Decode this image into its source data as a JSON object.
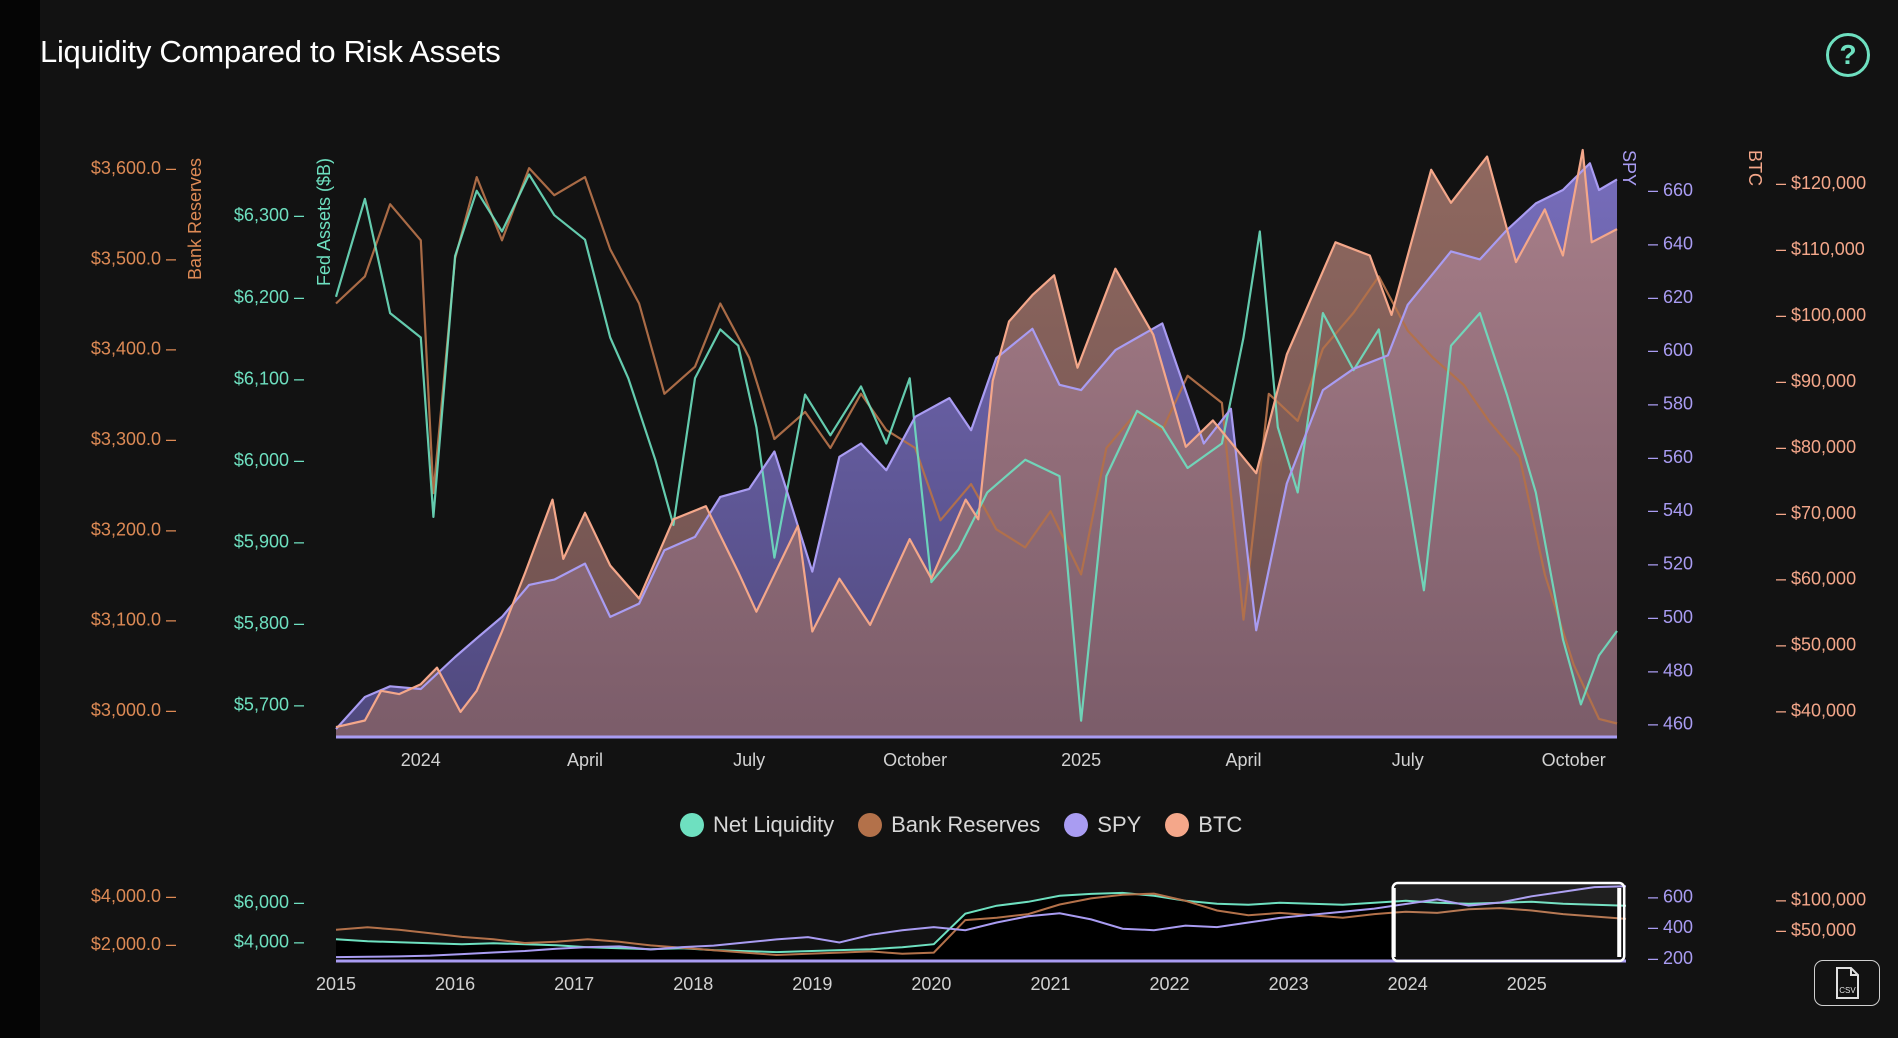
{
  "header": {
    "title": "Liquidity Compared to Risk Assets",
    "help_glyph": "?"
  },
  "toolbar": {
    "csv_label": "CSV",
    "csv_icon": "file-csv-icon",
    "help_icon": "help-circle-icon"
  },
  "colors": {
    "net_liquidity": "#6ee0c0",
    "bank_reserves": "#b3714a",
    "spy": "#a99cf2",
    "btc": "#f4a78a",
    "bank_axis": "#dd8a55",
    "fed_axis": "#6ee0c0",
    "spy_axis": "#a99cf2",
    "btc_axis": "#f4a78a"
  },
  "chart_data": {
    "type": "line",
    "title": "Liquidity Compared to Risk Assets",
    "x_ticks": [
      "2024",
      "April",
      "July",
      "October",
      "2025",
      "April",
      "July",
      "October"
    ],
    "x_range": [
      "2023-11-15",
      "2025-10-25"
    ],
    "legend": {
      "position": "bottom-center",
      "entries": [
        "Net Liquidity",
        "Bank Reserves",
        "SPY",
        "BTC"
      ]
    },
    "axes": {
      "bank_reserves": {
        "label": "Bank Reserves",
        "side": "left",
        "range": [
          2970,
          3620
        ],
        "ticks": [
          "$3,600.0",
          "$3,500.0",
          "$3,400.0",
          "$3,300.0",
          "$3,200.0",
          "$3,100.0",
          "$3,000.0"
        ]
      },
      "fed_assets": {
        "label": "Fed Assets ($B)",
        "side": "left",
        "range": [
          5660,
          6380
        ],
        "ticks": [
          "$6,300",
          "$6,200",
          "$6,100",
          "$6,000",
          "$5,900",
          "$5,800",
          "$5,700"
        ]
      },
      "spy": {
        "label": "SPY",
        "side": "right",
        "range": [
          455,
          675
        ],
        "ticks": [
          "660",
          "640",
          "620",
          "600",
          "580",
          "560",
          "540",
          "520",
          "500",
          "480",
          "460"
        ]
      },
      "btc": {
        "label": "BTC",
        "side": "right",
        "range": [
          36000,
          125000
        ],
        "ticks": [
          "$120,000",
          "$110,000",
          "$100,000",
          "$90,000",
          "$80,000",
          "$70,000",
          "$60,000",
          "$50,000",
          "$40,000"
        ]
      }
    },
    "series": [
      {
        "name": "Net Liquidity",
        "axis": "fed_assets",
        "color": "#6ee0c0",
        "points": [
          [
            "2023-11-15",
            6200
          ],
          [
            "2023-12-01",
            6320
          ],
          [
            "2023-12-15",
            6180
          ],
          [
            "2024-01-01",
            6150
          ],
          [
            "2024-01-08",
            5930
          ],
          [
            "2024-01-20",
            6250
          ],
          [
            "2024-02-01",
            6330
          ],
          [
            "2024-02-15",
            6280
          ],
          [
            "2024-03-01",
            6350
          ],
          [
            "2024-03-15",
            6300
          ],
          [
            "2024-04-01",
            6270
          ],
          [
            "2024-04-15",
            6150
          ],
          [
            "2024-04-25",
            6100
          ],
          [
            "2024-05-10",
            6000
          ],
          [
            "2024-05-20",
            5920
          ],
          [
            "2024-06-01",
            6100
          ],
          [
            "2024-06-15",
            6160
          ],
          [
            "2024-06-25",
            6140
          ],
          [
            "2024-07-05",
            6040
          ],
          [
            "2024-07-15",
            5880
          ],
          [
            "2024-08-01",
            6080
          ],
          [
            "2024-08-15",
            6030
          ],
          [
            "2024-09-01",
            6090
          ],
          [
            "2024-09-15",
            6020
          ],
          [
            "2024-09-28",
            6100
          ],
          [
            "2024-10-10",
            5850
          ],
          [
            "2024-10-25",
            5890
          ],
          [
            "2024-11-10",
            5960
          ],
          [
            "2024-12-01",
            6000
          ],
          [
            "2024-12-20",
            5980
          ],
          [
            "2025-01-01",
            5680
          ],
          [
            "2025-01-15",
            5980
          ],
          [
            "2025-02-01",
            6060
          ],
          [
            "2025-02-15",
            6040
          ],
          [
            "2025-03-01",
            5990
          ],
          [
            "2025-03-20",
            6020
          ],
          [
            "2025-04-01",
            6150
          ],
          [
            "2025-04-10",
            6280
          ],
          [
            "2025-04-20",
            6040
          ],
          [
            "2025-05-01",
            5960
          ],
          [
            "2025-05-15",
            6180
          ],
          [
            "2025-06-01",
            6110
          ],
          [
            "2025-06-15",
            6160
          ],
          [
            "2025-07-01",
            5960
          ],
          [
            "2025-07-10",
            5840
          ],
          [
            "2025-07-25",
            6140
          ],
          [
            "2025-08-10",
            6180
          ],
          [
            "2025-08-25",
            6080
          ],
          [
            "2025-09-10",
            5960
          ],
          [
            "2025-09-25",
            5780
          ],
          [
            "2025-10-05",
            5700
          ],
          [
            "2025-10-15",
            5760
          ],
          [
            "2025-10-25",
            5790
          ]
        ]
      },
      {
        "name": "Bank Reserves",
        "axis": "bank_reserves",
        "color": "#b3714a",
        "points": [
          [
            "2023-11-15",
            3450
          ],
          [
            "2023-12-01",
            3480
          ],
          [
            "2023-12-15",
            3560
          ],
          [
            "2024-01-01",
            3520
          ],
          [
            "2024-01-08",
            3240
          ],
          [
            "2024-01-20",
            3500
          ],
          [
            "2024-02-01",
            3590
          ],
          [
            "2024-02-15",
            3520
          ],
          [
            "2024-03-01",
            3600
          ],
          [
            "2024-03-15",
            3570
          ],
          [
            "2024-04-01",
            3590
          ],
          [
            "2024-04-15",
            3510
          ],
          [
            "2024-05-01",
            3450
          ],
          [
            "2024-05-15",
            3350
          ],
          [
            "2024-06-01",
            3380
          ],
          [
            "2024-06-15",
            3450
          ],
          [
            "2024-07-01",
            3390
          ],
          [
            "2024-07-15",
            3300
          ],
          [
            "2024-08-01",
            3330
          ],
          [
            "2024-08-15",
            3290
          ],
          [
            "2024-09-01",
            3350
          ],
          [
            "2024-09-15",
            3310
          ],
          [
            "2024-10-01",
            3290
          ],
          [
            "2024-10-15",
            3210
          ],
          [
            "2024-11-01",
            3250
          ],
          [
            "2024-11-15",
            3200
          ],
          [
            "2024-12-01",
            3180
          ],
          [
            "2024-12-15",
            3220
          ],
          [
            "2025-01-01",
            3150
          ],
          [
            "2025-01-15",
            3290
          ],
          [
            "2025-02-01",
            3330
          ],
          [
            "2025-02-15",
            3310
          ],
          [
            "2025-03-01",
            3370
          ],
          [
            "2025-03-20",
            3340
          ],
          [
            "2025-04-01",
            3100
          ],
          [
            "2025-04-15",
            3350
          ],
          [
            "2025-05-01",
            3320
          ],
          [
            "2025-05-15",
            3400
          ],
          [
            "2025-06-01",
            3440
          ],
          [
            "2025-06-15",
            3480
          ],
          [
            "2025-07-01",
            3420
          ],
          [
            "2025-07-15",
            3390
          ],
          [
            "2025-08-01",
            3360
          ],
          [
            "2025-08-15",
            3320
          ],
          [
            "2025-09-01",
            3280
          ],
          [
            "2025-09-15",
            3150
          ],
          [
            "2025-10-01",
            3050
          ],
          [
            "2025-10-15",
            2990
          ],
          [
            "2025-10-25",
            2985
          ]
        ]
      },
      {
        "name": "SPY",
        "axis": "spy",
        "color": "#a99cf2",
        "points": [
          [
            "2023-11-15",
            458
          ],
          [
            "2023-12-01",
            470
          ],
          [
            "2023-12-15",
            474
          ],
          [
            "2024-01-01",
            473
          ],
          [
            "2024-01-20",
            485
          ],
          [
            "2024-02-01",
            492
          ],
          [
            "2024-02-15",
            500
          ],
          [
            "2024-03-01",
            512
          ],
          [
            "2024-03-15",
            514
          ],
          [
            "2024-04-01",
            520
          ],
          [
            "2024-04-15",
            500
          ],
          [
            "2024-05-01",
            505
          ],
          [
            "2024-05-15",
            525
          ],
          [
            "2024-06-01",
            530
          ],
          [
            "2024-06-15",
            545
          ],
          [
            "2024-07-01",
            548
          ],
          [
            "2024-07-15",
            562
          ],
          [
            "2024-08-05",
            517
          ],
          [
            "2024-08-20",
            560
          ],
          [
            "2024-09-01",
            565
          ],
          [
            "2024-09-15",
            555
          ],
          [
            "2024-10-01",
            575
          ],
          [
            "2024-10-20",
            582
          ],
          [
            "2024-11-01",
            570
          ],
          [
            "2024-11-15",
            597
          ],
          [
            "2024-12-05",
            608
          ],
          [
            "2024-12-20",
            587
          ],
          [
            "2025-01-01",
            585
          ],
          [
            "2025-01-20",
            600
          ],
          [
            "2025-02-15",
            610
          ],
          [
            "2025-03-10",
            565
          ],
          [
            "2025-03-25",
            578
          ],
          [
            "2025-04-08",
            495
          ],
          [
            "2025-04-25",
            550
          ],
          [
            "2025-05-15",
            585
          ],
          [
            "2025-06-01",
            593
          ],
          [
            "2025-06-20",
            598
          ],
          [
            "2025-07-01",
            617
          ],
          [
            "2025-07-25",
            637
          ],
          [
            "2025-08-10",
            634
          ],
          [
            "2025-08-25",
            645
          ],
          [
            "2025-09-10",
            655
          ],
          [
            "2025-09-25",
            660
          ],
          [
            "2025-10-10",
            670
          ],
          [
            "2025-10-15",
            660
          ],
          [
            "2025-10-25",
            664
          ]
        ]
      },
      {
        "name": "BTC",
        "axis": "btc",
        "color": "#f4a78a",
        "points": [
          [
            "2023-11-15",
            37500
          ],
          [
            "2023-12-01",
            38500
          ],
          [
            "2023-12-10",
            43000
          ],
          [
            "2023-12-20",
            42500
          ],
          [
            "2024-01-01",
            44000
          ],
          [
            "2024-01-10",
            46500
          ],
          [
            "2024-01-23",
            39800
          ],
          [
            "2024-02-01",
            43000
          ],
          [
            "2024-02-15",
            52000
          ],
          [
            "2024-02-28",
            61000
          ],
          [
            "2024-03-14",
            72000
          ],
          [
            "2024-03-20",
            63000
          ],
          [
            "2024-04-01",
            70000
          ],
          [
            "2024-04-15",
            62000
          ],
          [
            "2024-05-01",
            57000
          ],
          [
            "2024-05-20",
            69000
          ],
          [
            "2024-06-07",
            71000
          ],
          [
            "2024-06-25",
            61000
          ],
          [
            "2024-07-05",
            55000
          ],
          [
            "2024-07-28",
            68000
          ],
          [
            "2024-08-05",
            52000
          ],
          [
            "2024-08-20",
            60000
          ],
          [
            "2024-09-06",
            53000
          ],
          [
            "2024-09-28",
            66000
          ],
          [
            "2024-10-10",
            60000
          ],
          [
            "2024-10-29",
            72000
          ],
          [
            "2024-11-05",
            69000
          ],
          [
            "2024-11-13",
            90000
          ],
          [
            "2024-11-22",
            99000
          ],
          [
            "2024-12-05",
            103000
          ],
          [
            "2024-12-17",
            106000
          ],
          [
            "2024-12-30",
            92000
          ],
          [
            "2025-01-20",
            107000
          ],
          [
            "2025-02-10",
            97000
          ],
          [
            "2025-02-28",
            80000
          ],
          [
            "2025-03-15",
            84000
          ],
          [
            "2025-04-08",
            76000
          ],
          [
            "2025-04-25",
            94000
          ],
          [
            "2025-05-22",
            111000
          ],
          [
            "2025-06-10",
            109000
          ],
          [
            "2025-06-22",
            100000
          ],
          [
            "2025-07-14",
            122000
          ],
          [
            "2025-07-25",
            117000
          ],
          [
            "2025-08-14",
            124000
          ],
          [
            "2025-08-30",
            108000
          ],
          [
            "2025-09-15",
            116000
          ],
          [
            "2025-09-25",
            109000
          ],
          [
            "2025-10-06",
            125000
          ],
          [
            "2025-10-11",
            111000
          ],
          [
            "2025-10-25",
            113000
          ]
        ]
      }
    ]
  },
  "navigator": {
    "x_ticks": [
      "2015",
      "2016",
      "2017",
      "2018",
      "2019",
      "2020",
      "2021",
      "2022",
      "2023",
      "2024",
      "2025"
    ],
    "bank_ticks": [
      "$4,000.0",
      "$2,000.0"
    ],
    "fed_ticks": [
      "$6,000",
      "$4,000"
    ],
    "spy_ticks": [
      "600",
      "400",
      "200"
    ],
    "btc_ticks": [
      "$100,000",
      "$50,000"
    ],
    "window": [
      "2023-11-15",
      "2025-10-25"
    ],
    "series": [
      {
        "name": "Net Liquidity",
        "values": [
          4100,
          4000,
          3950,
          3900,
          3850,
          3900,
          3850,
          3800,
          3700,
          3650,
          3600,
          3650,
          3550,
          3500,
          3450,
          3500,
          3550,
          3600,
          3700,
          3850,
          5400,
          5800,
          6000,
          6300,
          6400,
          6450,
          6300,
          6050,
          5900,
          5850,
          5950,
          5900,
          5850,
          5950,
          6050,
          5950,
          5900,
          5950,
          6000,
          5900,
          5850,
          5800
        ]
      },
      {
        "name": "Bank Reserves",
        "values": [
          2600,
          2700,
          2600,
          2450,
          2300,
          2200,
          2050,
          2100,
          2200,
          2100,
          1950,
          1850,
          1750,
          1650,
          1550,
          1600,
          1650,
          1700,
          1600,
          1650,
          3000,
          3100,
          3250,
          3650,
          3900,
          4050,
          4100,
          3800,
          3400,
          3200,
          3300,
          3200,
          3100,
          3250,
          3350,
          3300,
          3450,
          3500,
          3400,
          3250,
          3150,
          3050
        ]
      },
      {
        "name": "SPY",
        "values": [
          205,
          207,
          210,
          215,
          225,
          235,
          245,
          260,
          270,
          275,
          255,
          270,
          280,
          300,
          320,
          335,
          300,
          350,
          380,
          400,
          380,
          430,
          470,
          490,
          450,
          390,
          380,
          410,
          400,
          430,
          460,
          480,
          500,
          520,
          550,
          580,
          540,
          560,
          600,
          630,
          660,
          665
        ]
      }
    ]
  }
}
